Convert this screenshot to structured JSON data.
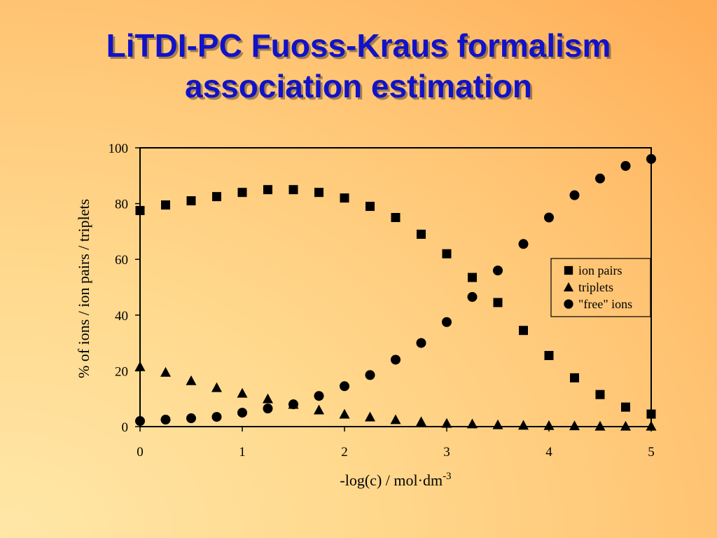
{
  "slide": {
    "title_line1": "LiTDI-PC Fuoss-Kraus formalism",
    "title_line2": "association estimation"
  },
  "colors": {
    "title": "#1212c8",
    "marker": "#000000",
    "background_light": "#ffe7a8",
    "background_dark": "#ffac55"
  },
  "chart_data": {
    "type": "scatter",
    "title": "",
    "xlabel": "-log(c) / mol·dm",
    "xlabel_superscript": "-3",
    "ylabel": "% of ions / ion pairs / triplets",
    "xlim": [
      0,
      5
    ],
    "ylim": [
      0,
      100
    ],
    "xticks": [
      "0",
      "1",
      "2",
      "3",
      "4",
      "5"
    ],
    "yticks": [
      "0",
      "20",
      "40",
      "60",
      "80",
      "100"
    ],
    "grid": false,
    "legend_position": "right",
    "x": [
      0,
      0.25,
      0.5,
      0.75,
      1,
      1.25,
      1.5,
      1.75,
      2,
      2.25,
      2.5,
      2.75,
      3,
      3.25,
      3.5,
      3.75,
      4,
      4.25,
      4.5,
      4.75,
      5
    ],
    "series": [
      {
        "name": "ion pairs",
        "marker": "square",
        "values": [
          77.5,
          79.5,
          81,
          82.5,
          84,
          85,
          85,
          84,
          82,
          79,
          75,
          69,
          62,
          53.5,
          44.5,
          34.5,
          25.5,
          17.5,
          11.5,
          7,
          4.5
        ]
      },
      {
        "name": "triplets",
        "marker": "triangle",
        "values": [
          21.5,
          19.5,
          16.5,
          14,
          12,
          10,
          8,
          6,
          4.5,
          3.5,
          2.5,
          1.8,
          1.2,
          1,
          0.7,
          0.5,
          0.4,
          0.3,
          0.2,
          0.2,
          0.2
        ]
      },
      {
        "name": "\"free\" ions",
        "marker": "circle",
        "values": [
          2,
          2.5,
          3,
          3.5,
          5,
          6.5,
          8,
          11,
          14.5,
          18.5,
          24,
          30,
          37.5,
          46.5,
          56,
          65.5,
          75,
          83,
          89,
          93.5,
          96
        ]
      }
    ]
  }
}
